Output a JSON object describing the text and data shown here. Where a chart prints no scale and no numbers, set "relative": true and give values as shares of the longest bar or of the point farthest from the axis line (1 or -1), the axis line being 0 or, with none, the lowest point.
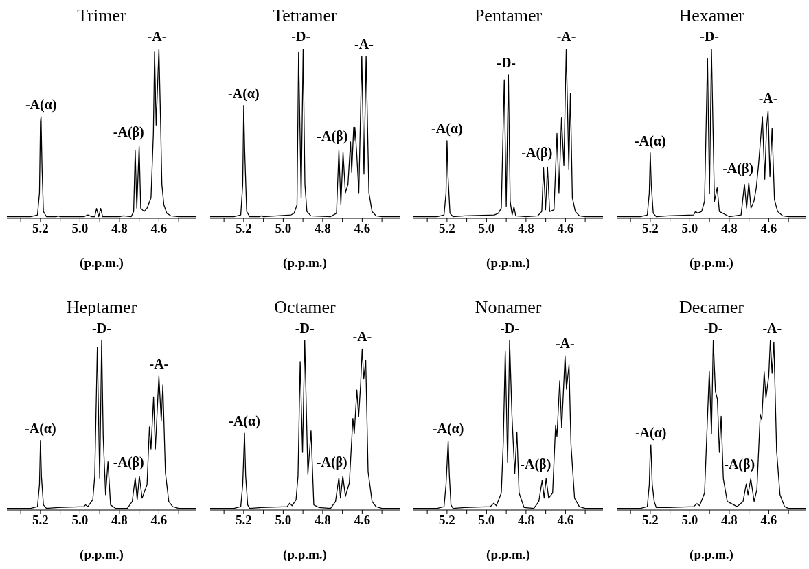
{
  "chart_data": [
    {
      "type": "line",
      "title": "Trimer",
      "xlabel": "(p.p.m.)",
      "relative": true,
      "color": "#000000",
      "xlim": [
        5.37,
        4.41
      ],
      "xticks": [
        {
          "value": 5.3,
          "label": null
        },
        5.2,
        {
          "value": 5.1,
          "label": null
        },
        {
          "value": 5,
          "label": "5.0"
        },
        {
          "value": 4.9,
          "label": null
        },
        4.8,
        {
          "value": 4.7,
          "label": null
        },
        4.6,
        {
          "value": 4.5,
          "label": null
        }
      ],
      "x": [
        5.37,
        5.25,
        5.215,
        5.205,
        5.2,
        5.197,
        5.192,
        5.185,
        5.17,
        5.12,
        5.11,
        5.1,
        4.98,
        4.96,
        4.94,
        4.925,
        4.916,
        4.905,
        4.895,
        4.885,
        4.8,
        4.78,
        4.74,
        4.728,
        4.72,
        4.712,
        4.7,
        4.692,
        4.675,
        4.66,
        4.64,
        4.628,
        4.622,
        4.614,
        4.6,
        4.592,
        4.585,
        4.575,
        4.56,
        4.54,
        4.5,
        4.41
      ],
      "values": [
        0.01,
        0.01,
        0.02,
        0.15,
        0.57,
        0.6,
        0.3,
        0.04,
        0.01,
        0.01,
        0.015,
        0.01,
        0.01,
        0.02,
        0.01,
        0.01,
        0.058,
        0.01,
        0.058,
        0.01,
        0.01,
        0.015,
        0.01,
        0.04,
        0.4,
        0.06,
        0.425,
        0.06,
        0.04,
        0.06,
        0.12,
        0.5,
        0.98,
        0.55,
        1,
        0.6,
        0.2,
        0.08,
        0.03,
        0.015,
        0.01,
        0.01
      ],
      "annotations": [
        {
          "text": "-A(α)",
          "x": 5.197,
          "y": 0.6
        },
        {
          "text": "-A(β)",
          "x": 4.71,
          "y": 0.425
        },
        {
          "text": "-A-",
          "x": 4.61,
          "y": 1
        }
      ]
    },
    {
      "type": "line",
      "title": "Tetramer",
      "xlabel": "(p.p.m.)",
      "relative": true,
      "color": "#000000",
      "xlim": [
        5.37,
        4.41
      ],
      "xticks": [
        {
          "value": 5.3,
          "label": null
        },
        5.2,
        {
          "value": 5.1,
          "label": null
        },
        {
          "value": 5,
          "label": "5.0"
        },
        {
          "value": 4.9,
          "label": null
        },
        4.8,
        {
          "value": 4.7,
          "label": null
        },
        4.6,
        {
          "value": 4.5,
          "label": null
        }
      ],
      "x": [
        5.37,
        5.25,
        5.215,
        5.205,
        5.2,
        5.195,
        5.185,
        5.17,
        5.12,
        5.11,
        5.1,
        4.96,
        4.945,
        4.93,
        4.922,
        4.909,
        4.899,
        4.89,
        4.88,
        4.86,
        4.76,
        4.73,
        4.718,
        4.708,
        4.697,
        4.685,
        4.672,
        4.659,
        4.653,
        4.643,
        4.64,
        4.637,
        4.629,
        4.617,
        4.602,
        4.591,
        4.58,
        4.566,
        4.55,
        4.53,
        4.5,
        4.41
      ],
      "values": [
        0.01,
        0.01,
        0.02,
        0.2,
        0.665,
        0.4,
        0.04,
        0.01,
        0.01,
        0.015,
        0.01,
        0.02,
        0.03,
        0.08,
        0.978,
        0.12,
        1,
        0.2,
        0.04,
        0.015,
        0.01,
        0.03,
        0.4,
        0.08,
        0.39,
        0.15,
        0.2,
        0.45,
        0.27,
        0.537,
        0.46,
        0.537,
        0.41,
        0.15,
        0.957,
        0.26,
        0.957,
        0.15,
        0.04,
        0.015,
        0.01,
        0.01
      ],
      "annotations": [
        {
          "text": "-A(α)",
          "x": 5.2,
          "y": 0.665
        },
        {
          "text": "-D-",
          "x": 4.91,
          "y": 1
        },
        {
          "text": "-A(β)",
          "x": 4.708,
          "y": 0.4
        },
        {
          "text": "-A-",
          "x": 4.591,
          "y": 0.957
        }
      ]
    },
    {
      "type": "line",
      "title": "Pentamer",
      "xlabel": "(p.p.m.)",
      "relative": true,
      "color": "#000000",
      "xlim": [
        5.37,
        4.41
      ],
      "xticks": [
        {
          "value": 5.3,
          "label": null
        },
        5.2,
        {
          "value": 5.1,
          "label": null
        },
        {
          "value": 5,
          "label": "5.0"
        },
        {
          "value": 4.9,
          "label": null
        },
        4.8,
        {
          "value": 4.7,
          "label": null
        },
        4.6,
        {
          "value": 4.5,
          "label": null
        }
      ],
      "x": [
        5.37,
        5.25,
        5.215,
        5.205,
        5.2,
        5.195,
        5.185,
        5.17,
        5.11,
        4.96,
        4.94,
        4.925,
        4.91,
        4.9,
        4.889,
        4.88,
        4.87,
        4.861,
        4.852,
        4.8,
        4.74,
        4.72,
        4.711,
        4.701,
        4.691,
        4.68,
        4.658,
        4.643,
        4.633,
        4.62,
        4.608,
        4.596,
        4.583,
        4.575,
        4.565,
        4.55,
        4.53,
        4.5,
        4.41
      ],
      "values": [
        0.01,
        0.01,
        0.02,
        0.15,
        0.458,
        0.25,
        0.03,
        0.01,
        0.015,
        0.02,
        0.03,
        0.06,
        0.817,
        0.07,
        0.847,
        0.1,
        0.02,
        0.068,
        0.015,
        0.01,
        0.015,
        0.04,
        0.297,
        0.05,
        0.302,
        0.04,
        0.05,
        0.5,
        0.15,
        0.593,
        0.31,
        1,
        0.29,
        0.737,
        0.12,
        0.04,
        0.015,
        0.01,
        0.01
      ],
      "annotations": [
        {
          "text": "-A(α)",
          "x": 5.2,
          "y": 0.458
        },
        {
          "text": "-D-",
          "x": 4.9,
          "y": 0.847
        },
        {
          "text": "-A(β)",
          "x": 4.701,
          "y": 0.302
        },
        {
          "text": "-A-",
          "x": 4.596,
          "y": 1
        }
      ]
    },
    {
      "type": "line",
      "title": "Hexamer",
      "xlabel": "(p.p.m.)",
      "relative": true,
      "color": "#000000",
      "xlim": [
        5.37,
        4.41
      ],
      "xticks": [
        {
          "value": 5.3,
          "label": null
        },
        5.2,
        {
          "value": 5.1,
          "label": null
        },
        {
          "value": 5,
          "label": "5.0"
        },
        {
          "value": 4.9,
          "label": null
        },
        4.8,
        {
          "value": 4.7,
          "label": null
        },
        4.6,
        {
          "value": 4.5,
          "label": null
        }
      ],
      "x": [
        5.37,
        5.25,
        5.215,
        5.205,
        5.2,
        5.195,
        5.185,
        5.17,
        5.11,
        4.98,
        4.971,
        4.96,
        4.94,
        4.925,
        4.91,
        4.9,
        4.89,
        4.875,
        4.861,
        4.85,
        4.8,
        4.74,
        4.723,
        4.712,
        4.701,
        4.69,
        4.675,
        4.663,
        4.652,
        4.632,
        4.62,
        4.611,
        4.603,
        4.594,
        4.583,
        4.571,
        4.555,
        4.53,
        4.5,
        4.41
      ],
      "values": [
        0.01,
        0.01,
        0.02,
        0.15,
        0.386,
        0.2,
        0.03,
        0.01,
        0.015,
        0.02,
        0.04,
        0.03,
        0.04,
        0.1,
        0.945,
        0.146,
        1,
        0.1,
        0.18,
        0.04,
        0.01,
        0.02,
        0.2,
        0.06,
        0.21,
        0.06,
        0.1,
        0.18,
        0.31,
        0.6,
        0.23,
        0.535,
        0.635,
        0.245,
        0.53,
        0.11,
        0.04,
        0.015,
        0.01,
        0.01
      ],
      "annotations": [
        {
          "text": "-A(α)",
          "x": 5.2,
          "y": 0.386
        },
        {
          "text": "-D-",
          "x": 4.9,
          "y": 1
        },
        {
          "text": "-A(β)",
          "x": 4.712,
          "y": 0.21
        },
        {
          "text": "-A-",
          "x": 4.603,
          "y": 0.635
        }
      ]
    },
    {
      "type": "line",
      "title": "Heptamer",
      "xlabel": "(p.p.m.)",
      "relative": true,
      "color": "#000000",
      "xlim": [
        5.37,
        4.41
      ],
      "xticks": [
        {
          "value": 5.3,
          "label": null
        },
        5.2,
        {
          "value": 5.1,
          "label": null
        },
        {
          "value": 5,
          "label": "5.0"
        },
        {
          "value": 4.9,
          "label": null
        },
        4.8,
        {
          "value": 4.7,
          "label": null
        },
        4.6,
        {
          "value": 4.5,
          "label": null
        }
      ],
      "x": [
        5.37,
        5.25,
        5.215,
        5.205,
        5.2,
        5.195,
        5.185,
        5.17,
        5.11,
        4.98,
        4.972,
        4.96,
        4.935,
        4.925,
        4.912,
        4.9,
        4.89,
        4.882,
        4.87,
        4.858,
        4.845,
        4.82,
        4.76,
        4.735,
        4.72,
        4.71,
        4.699,
        4.685,
        4.66,
        4.648,
        4.64,
        4.627,
        4.618,
        4.6,
        4.588,
        4.58,
        4.567,
        4.55,
        4.53,
        4.5,
        4.41
      ],
      "values": [
        0.01,
        0.01,
        0.02,
        0.15,
        0.41,
        0.2,
        0.03,
        0.01,
        0.015,
        0.02,
        0.03,
        0.02,
        0.06,
        0.2,
        0.96,
        0.185,
        1,
        0.43,
        0.09,
        0.285,
        0.03,
        0.01,
        0.01,
        0.05,
        0.19,
        0.06,
        0.2,
        0.07,
        0.15,
        0.49,
        0.36,
        0.666,
        0.36,
        0.79,
        0.524,
        0.737,
        0.22,
        0.05,
        0.02,
        0.01,
        0.01
      ],
      "annotations": [
        {
          "text": "-A(α)",
          "x": 5.2,
          "y": 0.41
        },
        {
          "text": "-D-",
          "x": 4.89,
          "y": 1
        },
        {
          "text": "-A(β)",
          "x": 4.71,
          "y": 0.2
        },
        {
          "text": "-A-",
          "x": 4.6,
          "y": 0.79
        }
      ]
    },
    {
      "type": "line",
      "title": "Octamer",
      "xlabel": "(p.p.m.)",
      "relative": true,
      "color": "#000000",
      "xlim": [
        5.37,
        4.41
      ],
      "xticks": [
        {
          "value": 5.3,
          "label": null
        },
        5.2,
        {
          "value": 5.1,
          "label": null
        },
        {
          "value": 5,
          "label": "5.0"
        },
        {
          "value": 4.9,
          "label": null
        },
        4.8,
        {
          "value": 4.7,
          "label": null
        },
        4.6,
        {
          "value": 4.5,
          "label": null
        }
      ],
      "x": [
        5.37,
        5.25,
        5.215,
        5.205,
        5.196,
        5.19,
        5.18,
        5.17,
        5.11,
        4.98,
        4.967,
        4.955,
        4.935,
        4.925,
        4.914,
        4.902,
        4.891,
        4.875,
        4.859,
        4.845,
        4.82,
        4.76,
        4.735,
        4.718,
        4.71,
        4.698,
        4.685,
        4.665,
        4.647,
        4.64,
        4.627,
        4.618,
        4.608,
        4.6,
        4.592,
        4.582,
        4.57,
        4.55,
        4.53,
        4.5,
        4.41
      ],
      "values": [
        0.01,
        0.01,
        0.02,
        0.15,
        0.453,
        0.2,
        0.03,
        0.01,
        0.015,
        0.02,
        0.04,
        0.025,
        0.06,
        0.2,
        0.875,
        0.34,
        1,
        0.21,
        0.467,
        0.03,
        0.015,
        0.01,
        0.05,
        0.19,
        0.07,
        0.2,
        0.08,
        0.16,
        0.54,
        0.45,
        0.708,
        0.55,
        0.74,
        0.95,
        0.775,
        0.883,
        0.225,
        0.05,
        0.02,
        0.01,
        0.01
      ],
      "annotations": [
        {
          "text": "-A(α)",
          "x": 5.196,
          "y": 0.453
        },
        {
          "text": "-D-",
          "x": 4.891,
          "y": 1
        },
        {
          "text": "-A(β)",
          "x": 4.71,
          "y": 0.2
        },
        {
          "text": "-A-",
          "x": 4.6,
          "y": 0.95
        }
      ]
    },
    {
      "type": "line",
      "title": "Nonamer",
      "xlabel": "(p.p.m.)",
      "relative": true,
      "color": "#000000",
      "xlim": [
        5.37,
        4.41
      ],
      "xticks": [
        {
          "value": 5.3,
          "label": null
        },
        5.2,
        {
          "value": 5.1,
          "label": null
        },
        {
          "value": 5,
          "label": "5.0"
        },
        {
          "value": 4.9,
          "label": null
        },
        4.8,
        {
          "value": 4.7,
          "label": null
        },
        4.6,
        {
          "value": 4.5,
          "label": null
        }
      ],
      "x": [
        5.37,
        5.25,
        5.215,
        5.205,
        5.194,
        5.188,
        5.18,
        5.17,
        5.11,
        4.98,
        4.963,
        4.95,
        4.925,
        4.915,
        4.905,
        4.893,
        4.883,
        4.871,
        4.857,
        4.846,
        4.835,
        4.81,
        4.76,
        4.735,
        4.718,
        4.708,
        4.698,
        4.685,
        4.665,
        4.65,
        4.643,
        4.629,
        4.619,
        4.602,
        4.595,
        4.582,
        4.572,
        4.554,
        4.53,
        4.5,
        4.41
      ],
      "values": [
        0.01,
        0.01,
        0.02,
        0.15,
        0.407,
        0.2,
        0.03,
        0.01,
        0.015,
        0.02,
        0.04,
        0.025,
        0.1,
        0.4,
        0.934,
        0.28,
        1,
        0.557,
        0.213,
        0.46,
        0.1,
        0.015,
        0.01,
        0.05,
        0.175,
        0.07,
        0.185,
        0.07,
        0.1,
        0.5,
        0.435,
        0.762,
        0.484,
        0.91,
        0.713,
        0.856,
        0.385,
        0.07,
        0.02,
        0.01,
        0.01
      ],
      "annotations": [
        {
          "text": "-A(α)",
          "x": 5.194,
          "y": 0.407
        },
        {
          "text": "-D-",
          "x": 4.883,
          "y": 1
        },
        {
          "text": "-A(β)",
          "x": 4.708,
          "y": 0.185
        },
        {
          "text": "-A-",
          "x": 4.602,
          "y": 0.91
        }
      ]
    },
    {
      "type": "line",
      "title": "Decamer",
      "xlabel": "(p.p.m.)",
      "relative": true,
      "color": "#000000",
      "xlim": [
        5.37,
        4.41
      ],
      "xticks": [
        {
          "value": 5.3,
          "label": null
        },
        5.2,
        {
          "value": 5.1,
          "label": null
        },
        {
          "value": 5,
          "label": "5.0"
        },
        {
          "value": 4.9,
          "label": null
        },
        4.8,
        {
          "value": 4.7,
          "label": null
        },
        4.6,
        {
          "value": 4.5,
          "label": null
        }
      ],
      "x": [
        5.37,
        5.25,
        5.215,
        5.205,
        5.2,
        5.197,
        5.19,
        5.18,
        5.17,
        5.11,
        4.98,
        4.964,
        4.95,
        4.925,
        4.915,
        4.901,
        4.89,
        4.881,
        4.87,
        4.86,
        4.85,
        4.841,
        4.83,
        4.81,
        4.76,
        4.73,
        4.714,
        4.705,
        4.691,
        4.674,
        4.66,
        4.643,
        4.635,
        4.623,
        4.614,
        4.6,
        4.592,
        4.583,
        4.574,
        4.56,
        4.543,
        4.52,
        4.5,
        4.41
      ],
      "values": [
        0.01,
        0.01,
        0.02,
        0.15,
        0.35,
        0.384,
        0.15,
        0.05,
        0.015,
        0.015,
        0.02,
        0.037,
        0.025,
        0.1,
        0.4,
        0.818,
        0.45,
        1,
        0.7,
        0.653,
        0.34,
        0.553,
        0.185,
        0.05,
        0.02,
        0.05,
        0.153,
        0.09,
        0.185,
        0.05,
        0.12,
        0.565,
        0.53,
        0.815,
        0.66,
        0.79,
        1,
        0.806,
        0.99,
        0.347,
        0.09,
        0.02,
        0.01,
        0.01
      ],
      "annotations": [
        {
          "text": "-A(α)",
          "x": 5.197,
          "y": 0.384
        },
        {
          "text": "-D-",
          "x": 4.881,
          "y": 1
        },
        {
          "text": "-A(β)",
          "x": 4.705,
          "y": 0.185
        },
        {
          "text": "-A-",
          "x": 4.583,
          "y": 1
        }
      ]
    }
  ]
}
